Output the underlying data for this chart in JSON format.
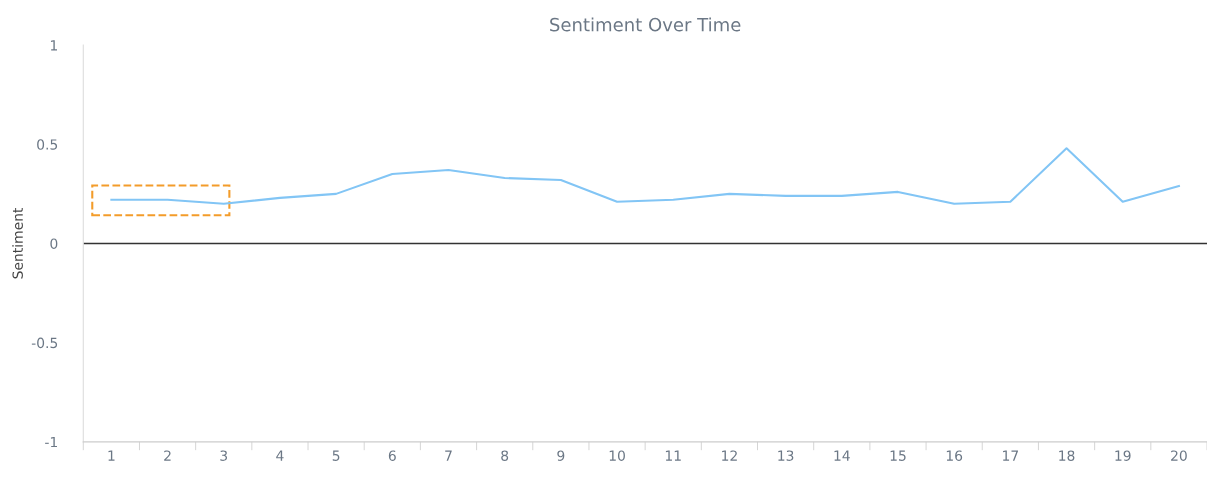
{
  "chart_data": {
    "type": "line",
    "title": "Sentiment Over Time",
    "ylabel": "Sentiment",
    "categories": [
      "1",
      "2",
      "3",
      "4",
      "5",
      "6",
      "7",
      "8",
      "9",
      "10",
      "11",
      "12",
      "13",
      "14",
      "15",
      "16",
      "17",
      "18",
      "19",
      "20"
    ],
    "series": [
      {
        "color": "#82c5f5",
        "values": [
          0.22,
          0.22,
          0.2,
          0.23,
          0.25,
          0.35,
          0.37,
          0.33,
          0.32,
          0.21,
          0.22,
          0.25,
          0.24,
          0.24,
          0.26,
          0.2,
          0.21,
          0.48,
          0.21,
          0.29
        ]
      }
    ],
    "ylim": [
      -1,
      1
    ],
    "yticks": [
      -1,
      -0.5,
      0,
      0.5,
      1
    ],
    "ref_lines": [
      {
        "axis": "y",
        "value": 0,
        "color": "#333333"
      }
    ],
    "grid": false,
    "marker": "none",
    "line_style": "solid"
  }
}
